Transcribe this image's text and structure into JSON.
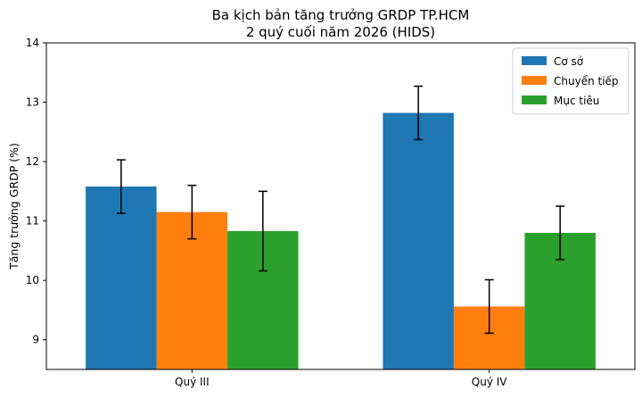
{
  "chart_data": {
    "type": "bar",
    "title": [
      "Ba kịch bản tăng trưởng GRDP TP.HCM",
      "2 quý cuối năm 2026 (HIDS)"
    ],
    "xlabel": "",
    "ylabel": "Tăng trưởng GRDP (%)",
    "categories": [
      "Quý III",
      "Quý IV"
    ],
    "ylim": [
      8.5,
      14
    ],
    "yticks": [
      9,
      10,
      11,
      12,
      13,
      14
    ],
    "grid": false,
    "legend_position": "top-right",
    "series": [
      {
        "name": "Cơ sở",
        "color": "#1f77b4",
        "values": [
          11.58,
          12.82
        ],
        "errors": [
          0.45,
          0.45
        ]
      },
      {
        "name": "Chuyển tiếp",
        "color": "#ff7f0e",
        "values": [
          11.15,
          9.56
        ],
        "errors": [
          0.45,
          0.45
        ]
      },
      {
        "name": "Mục tiêu",
        "color": "#2ca02c",
        "values": [
          10.83,
          10.8
        ],
        "errors": [
          0.67,
          0.45
        ]
      }
    ]
  }
}
